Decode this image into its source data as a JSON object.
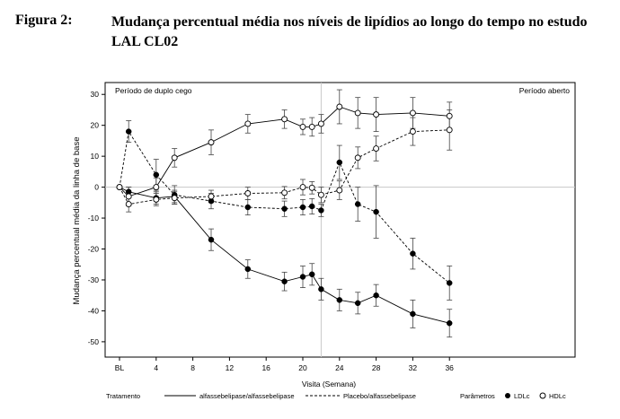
{
  "figure": {
    "label": "Figura 2:",
    "title": "Mudança percentual média nos níveis de lipídios ao longo do tempo no estudo LAL CL02"
  },
  "chart_data": {
    "type": "line",
    "ylabel": "Mudança percentual média da linha de base",
    "xlabel": "Visita (Semana)",
    "xlim": [
      0,
      37
    ],
    "ylim": [
      -55,
      33
    ],
    "x_ticks": [
      {
        "x": 0,
        "label": "BL"
      },
      {
        "x": 4,
        "label": "4"
      },
      {
        "x": 8,
        "label": "8"
      },
      {
        "x": 12,
        "label": "12"
      },
      {
        "x": 16,
        "label": "16"
      },
      {
        "x": 20,
        "label": "20"
      },
      {
        "x": 24,
        "label": "24"
      },
      {
        "x": 28,
        "label": "28"
      },
      {
        "x": 32,
        "label": "32"
      },
      {
        "x": 36,
        "label": "36"
      }
    ],
    "y_ticks": [
      30,
      20,
      10,
      0,
      -10,
      -20,
      -30,
      -40,
      -50
    ],
    "reference_line_y": 0,
    "vertical_line_x": 22,
    "annotations": {
      "left_period": "Período de duplo cego",
      "right_period": "Período aberto"
    },
    "legend": {
      "treatment_title": "Tratamento",
      "solid_label": "alfassebelipase/alfassebelipase",
      "dashed_label": "Placebo/alfassebelipase",
      "params_title": "Parâmetros",
      "ldl_label": "LDLc",
      "hdl_label": "HDLc"
    },
    "series": [
      {
        "name": "alfassebelipase/alfassebelipase LDLc",
        "line": "solid",
        "marker": "filled",
        "points": [
          [
            0,
            0,
            0
          ],
          [
            1,
            -1.5,
            1.5
          ],
          [
            4,
            -3.5,
            2
          ],
          [
            6,
            -3,
            2
          ],
          [
            10,
            -17,
            3.5
          ],
          [
            14,
            -26.5,
            3
          ],
          [
            18,
            -30.5,
            3
          ],
          [
            20,
            -29,
            3.5
          ],
          [
            21,
            -28.2,
            3.5
          ],
          [
            22,
            -33,
            3.5
          ],
          [
            24,
            -36.5,
            3.5
          ],
          [
            26,
            -37.5,
            3.5
          ],
          [
            28,
            -35,
            3.5
          ],
          [
            32,
            -41,
            4.5
          ],
          [
            36,
            -44,
            4.5
          ]
        ]
      },
      {
        "name": "alfassebelipase/alfassebelipase HDLc",
        "line": "solid",
        "marker": "open",
        "points": [
          [
            0,
            0,
            0
          ],
          [
            1,
            -3,
            3
          ],
          [
            4,
            0,
            3
          ],
          [
            6,
            9.5,
            3
          ],
          [
            10,
            14.5,
            4
          ],
          [
            14,
            20.5,
            3
          ],
          [
            18,
            22,
            3
          ],
          [
            20,
            19.5,
            2.5
          ],
          [
            21,
            19.5,
            3
          ],
          [
            22,
            20.5,
            3
          ],
          [
            24,
            26,
            5.5
          ],
          [
            26,
            24,
            5
          ],
          [
            28,
            23.5,
            5.5
          ],
          [
            32,
            24,
            5
          ],
          [
            36,
            23,
            4.5
          ]
        ]
      },
      {
        "name": "Placebo/alfassebelipase LDLc",
        "line": "dashed",
        "marker": "filled",
        "points": [
          [
            0,
            0,
            0
          ],
          [
            1,
            18,
            3.5
          ],
          [
            4,
            4,
            5
          ],
          [
            6,
            -2.5,
            3
          ],
          [
            10,
            -4.5,
            2.5
          ],
          [
            14,
            -6.5,
            2.5
          ],
          [
            18,
            -7,
            2.5
          ],
          [
            20,
            -6.5,
            2.5
          ],
          [
            21,
            -6.2,
            2.5
          ],
          [
            22,
            -7.5,
            2
          ],
          [
            24,
            8,
            5.5
          ],
          [
            26,
            -5.5,
            5.5
          ],
          [
            28,
            -8,
            8.5
          ],
          [
            32,
            -21.5,
            5
          ],
          [
            36,
            -31,
            5.5
          ]
        ]
      },
      {
        "name": "Placebo/alfassebelipase HDLc",
        "line": "dashed",
        "marker": "open",
        "points": [
          [
            0,
            0,
            0
          ],
          [
            1,
            -5.5,
            2.5
          ],
          [
            4,
            -4,
            2
          ],
          [
            6,
            -3.5,
            2
          ],
          [
            10,
            -3,
            2
          ],
          [
            14,
            -2,
            2
          ],
          [
            18,
            -1.8,
            2
          ],
          [
            20,
            0,
            2.5
          ],
          [
            21,
            -0.2,
            2
          ],
          [
            22,
            -2.5,
            2.5
          ],
          [
            24,
            -1,
            3
          ],
          [
            26,
            9.5,
            3.5
          ],
          [
            28,
            12.5,
            4
          ],
          [
            32,
            18,
            4.5
          ],
          [
            36,
            18.5,
            6.5
          ]
        ]
      }
    ]
  }
}
